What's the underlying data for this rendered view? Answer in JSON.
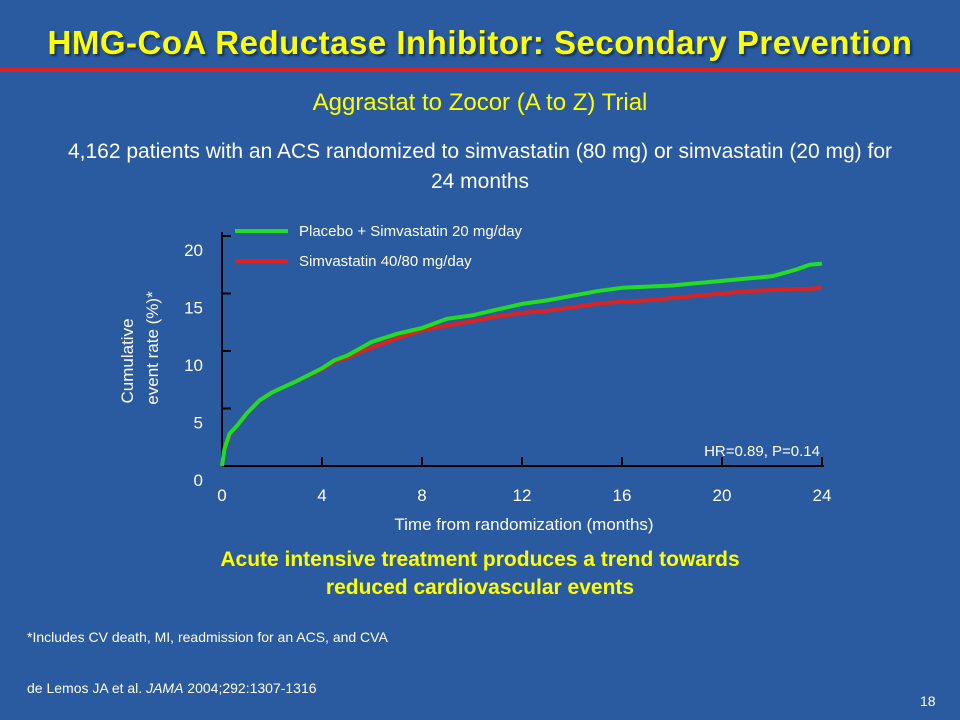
{
  "slide": {
    "title": "HMG-CoA Reductase Inhibitor: Secondary Prevention",
    "subtitle": "Aggrastat to Zocor (A to Z) Trial",
    "description": "4,162 patients with an ACS randomized to simvastatin (80 mg) or simvastatin (20 mg) for 24 months",
    "takeaway_line1": "Acute intensive treatment produces a trend towards",
    "takeaway_line2": "reduced cardiovascular events",
    "footnote": "*Includes CV death, MI, readmission for an ACS, and CVA",
    "citation_authors": "de Lemos JA et al. ",
    "citation_journal": "JAMA",
    "citation_details": " 2004;292:1307-1316",
    "slide_number": "18"
  },
  "colors": {
    "background": "#2a5aa0",
    "title": "#ffff00",
    "accent_rule": "#e02020",
    "series_placebo": "#22dd22",
    "series_high_dose": "#dd2222"
  },
  "chart_data": {
    "type": "line",
    "title": "",
    "xlabel": "Time from randomization (months)",
    "ylabel_line1": "Cumulative",
    "ylabel_line2": "event rate (%)*",
    "xlim": [
      0,
      24
    ],
    "ylim": [
      0,
      20
    ],
    "xticks": [
      0,
      4,
      8,
      12,
      16,
      20,
      24
    ],
    "yticks": [
      0,
      5,
      10,
      15,
      20
    ],
    "annotation": "HR=0.89, P=0.14",
    "legend_position": "top-left",
    "series": [
      {
        "name": "Placebo + Simvastatin 20 mg/day",
        "color": "#22dd22",
        "x": [
          0,
          0.1,
          0.3,
          0.6,
          1,
          1.5,
          2,
          3,
          4,
          4.5,
          5,
          5.5,
          6,
          7,
          8,
          9,
          10,
          11,
          12,
          13,
          14,
          15,
          16,
          17,
          18,
          19,
          20,
          21,
          22,
          23,
          23.5,
          24
        ],
        "y": [
          0,
          1.5,
          2.8,
          3.5,
          4.6,
          5.7,
          6.4,
          7.4,
          8.5,
          9.2,
          9.6,
          10.2,
          10.8,
          11.5,
          12,
          12.8,
          13.1,
          13.6,
          14.1,
          14.4,
          14.8,
          15.2,
          15.5,
          15.6,
          15.7,
          15.9,
          16.1,
          16.3,
          16.5,
          17.1,
          17.5,
          17.6
        ]
      },
      {
        "name": "Simvastatin 40/80 mg/day",
        "color": "#dd2222",
        "x": [
          0,
          0.1,
          0.3,
          0.6,
          1,
          1.5,
          2,
          3,
          4,
          4.5,
          5,
          5.5,
          6,
          7,
          8,
          9,
          10,
          11,
          12,
          13,
          14,
          15,
          16,
          17,
          18,
          19,
          20,
          21,
          22,
          23,
          23.5,
          24
        ],
        "y": [
          0,
          1.4,
          2.7,
          3.5,
          4.6,
          5.7,
          6.4,
          7.4,
          8.4,
          9.1,
          9.4,
          9.9,
          10.3,
          11.1,
          11.8,
          12.2,
          12.6,
          13,
          13.3,
          13.5,
          13.8,
          14.1,
          14.3,
          14.4,
          14.6,
          14.8,
          15,
          15.2,
          15.3,
          15.4,
          15.4,
          15.5
        ]
      }
    ]
  }
}
